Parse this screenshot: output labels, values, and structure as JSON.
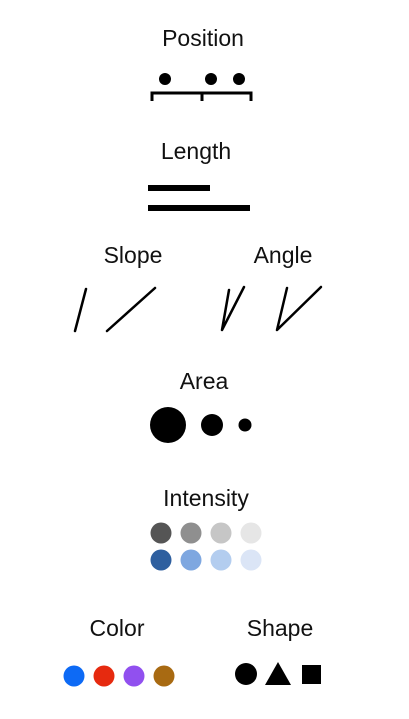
{
  "labels": {
    "position": "Position",
    "length": "Length",
    "slope": "Slope",
    "angle": "Angle",
    "area": "Area",
    "intensity": "Intensity",
    "color": "Color",
    "shape": "Shape"
  },
  "colors": {
    "ink": "#000000",
    "intensity_gray": [
      "#555555",
      "#8f8f8f",
      "#c6c6c6",
      "#e6e6e6"
    ],
    "intensity_blue": [
      "#2e5f9f",
      "#7ea7e0",
      "#b3cdef",
      "#dbe5f6"
    ],
    "color_dots": [
      "#0d6af5",
      "#e62a0f",
      "#9150ef",
      "#a86a12"
    ]
  },
  "icons": {
    "shapes": [
      "circle-icon",
      "triangle-icon",
      "square-icon"
    ]
  }
}
